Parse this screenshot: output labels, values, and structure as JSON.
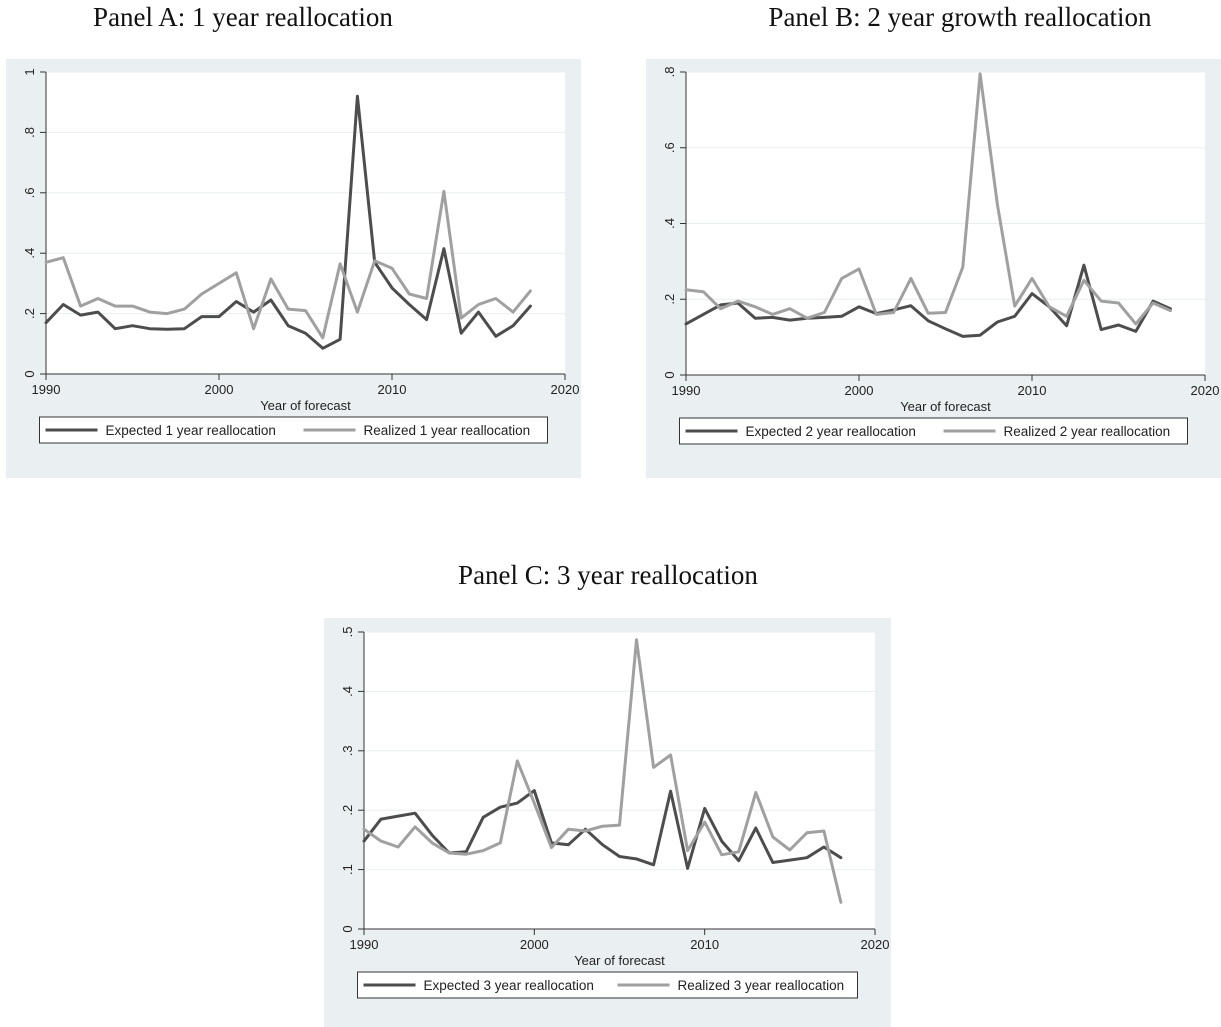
{
  "panels": [
    {
      "title": "Panel A: 1 year reallocation"
    },
    {
      "title": "Panel B: 2 year growth reallocation"
    },
    {
      "title": "Panel C: 3 year reallocation"
    }
  ],
  "colors": {
    "background": "#eaf0f2",
    "plot": "#ffffff",
    "grid": "#e8eef0",
    "expected": "#4d4d4d",
    "realized": "#a0a0a0"
  },
  "chart_data": [
    {
      "type": "line",
      "title": "Panel A: 1 year reallocation",
      "xlabel": "Year of forecast",
      "ylabel": "",
      "xlim": [
        1990,
        2020
      ],
      "ylim": [
        0,
        1
      ],
      "x_ticks": [
        1990,
        2000,
        2010,
        2020
      ],
      "y_ticks": [
        0,
        0.2,
        0.4,
        0.6,
        0.8,
        1
      ],
      "y_tick_labels": [
        "0",
        ".2",
        ".4",
        ".6",
        ".8",
        "1"
      ],
      "grid": true,
      "legend": "bottom",
      "x": [
        1990,
        1991,
        1992,
        1993,
        1994,
        1995,
        1996,
        1997,
        1998,
        1999,
        2000,
        2001,
        2002,
        2003,
        2004,
        2005,
        2006,
        2007,
        2008,
        2009,
        2010,
        2011,
        2012,
        2013,
        2014,
        2015,
        2016,
        2017,
        2018
      ],
      "series": [
        {
          "name": "Expected 1 year reallocation",
          "color": "#4d4d4d",
          "values": [
            0.17,
            0.23,
            0.195,
            0.205,
            0.15,
            0.16,
            0.15,
            0.148,
            0.15,
            0.19,
            0.19,
            0.24,
            0.205,
            0.245,
            0.16,
            0.135,
            0.085,
            0.115,
            0.92,
            0.37,
            0.285,
            0.23,
            0.18,
            0.415,
            0.135,
            0.205,
            0.125,
            0.16,
            0.225
          ]
        },
        {
          "name": "Realized 1 year reallocation",
          "color": "#a0a0a0",
          "values": [
            0.37,
            0.385,
            0.225,
            0.25,
            0.225,
            0.225,
            0.205,
            0.2,
            0.215,
            0.265,
            0.3,
            0.335,
            0.15,
            0.315,
            0.215,
            0.21,
            0.12,
            0.365,
            0.205,
            0.375,
            0.35,
            0.265,
            0.25,
            0.605,
            0.185,
            0.23,
            0.25,
            0.205,
            0.275
          ]
        }
      ]
    },
    {
      "type": "line",
      "title": "Panel B: 2 year growth reallocation",
      "xlabel": "Year of forecast",
      "ylabel": "",
      "xlim": [
        1990,
        2020
      ],
      "ylim": [
        0,
        0.8
      ],
      "x_ticks": [
        1990,
        2000,
        2010,
        2020
      ],
      "y_ticks": [
        0,
        0.2,
        0.4,
        0.6,
        0.8
      ],
      "y_tick_labels": [
        "0",
        ".2",
        ".4",
        ".6",
        ".8"
      ],
      "grid": true,
      "legend": "bottom",
      "x": [
        1990,
        1991,
        1992,
        1993,
        1994,
        1995,
        1996,
        1997,
        1998,
        1999,
        2000,
        2001,
        2002,
        2003,
        2004,
        2005,
        2006,
        2007,
        2008,
        2009,
        2010,
        2011,
        2012,
        2013,
        2014,
        2015,
        2016,
        2017,
        2018
      ],
      "series": [
        {
          "name": "Expected 2 year reallocation",
          "color": "#4d4d4d",
          "values": [
            0.135,
            0.16,
            0.185,
            0.19,
            0.15,
            0.152,
            0.145,
            0.15,
            0.152,
            0.155,
            0.18,
            0.162,
            0.172,
            0.183,
            0.143,
            0.122,
            0.102,
            0.105,
            0.14,
            0.155,
            0.215,
            0.18,
            0.13,
            0.29,
            0.12,
            0.132,
            0.115,
            0.195,
            0.175
          ]
        },
        {
          "name": "Realized 2 year reallocation",
          "color": "#a0a0a0",
          "values": [
            0.225,
            0.22,
            0.175,
            0.195,
            0.18,
            0.16,
            0.175,
            0.15,
            0.165,
            0.255,
            0.28,
            0.16,
            0.165,
            0.255,
            0.163,
            0.165,
            0.285,
            0.795,
            0.45,
            0.182,
            0.255,
            0.18,
            0.155,
            0.25,
            0.195,
            0.19,
            0.135,
            0.19,
            0.17
          ]
        }
      ]
    },
    {
      "type": "line",
      "title": "Panel C: 3 year reallocation",
      "xlabel": "Year of forecast",
      "ylabel": "",
      "xlim": [
        1990,
        2020
      ],
      "ylim": [
        0,
        0.5
      ],
      "x_ticks": [
        1990,
        2000,
        2010,
        2020
      ],
      "y_ticks": [
        0,
        0.1,
        0.2,
        0.3,
        0.4,
        0.5
      ],
      "y_tick_labels": [
        "0",
        ".1",
        ".2",
        ".3",
        ".4",
        ".5"
      ],
      "grid": true,
      "legend": "bottom",
      "x": [
        1990,
        1991,
        1992,
        1993,
        1994,
        1995,
        1996,
        1997,
        1998,
        1999,
        2000,
        2001,
        2002,
        2003,
        2004,
        2005,
        2006,
        2007,
        2008,
        2009,
        2010,
        2011,
        2012,
        2013,
        2014,
        2015,
        2016,
        2017,
        2018
      ],
      "series": [
        {
          "name": "Expected 3 year reallocation",
          "color": "#4d4d4d",
          "values": [
            0.148,
            0.185,
            0.19,
            0.195,
            0.158,
            0.128,
            0.13,
            0.188,
            0.205,
            0.212,
            0.233,
            0.145,
            0.142,
            0.168,
            0.142,
            0.122,
            0.118,
            0.108,
            0.232,
            0.102,
            0.203,
            0.148,
            0.115,
            0.17,
            0.112,
            0.116,
            0.12,
            0.138,
            0.12
          ]
        },
        {
          "name": "Realized 3 year reallocation",
          "color": "#a0a0a0",
          "values": [
            0.168,
            0.148,
            0.138,
            0.172,
            0.145,
            0.128,
            0.126,
            0.132,
            0.145,
            0.283,
            0.212,
            0.137,
            0.168,
            0.165,
            0.173,
            0.175,
            0.487,
            0.272,
            0.293,
            0.132,
            0.18,
            0.125,
            0.13,
            0.23,
            0.155,
            0.133,
            0.162,
            0.165,
            0.045
          ]
        }
      ]
    }
  ]
}
